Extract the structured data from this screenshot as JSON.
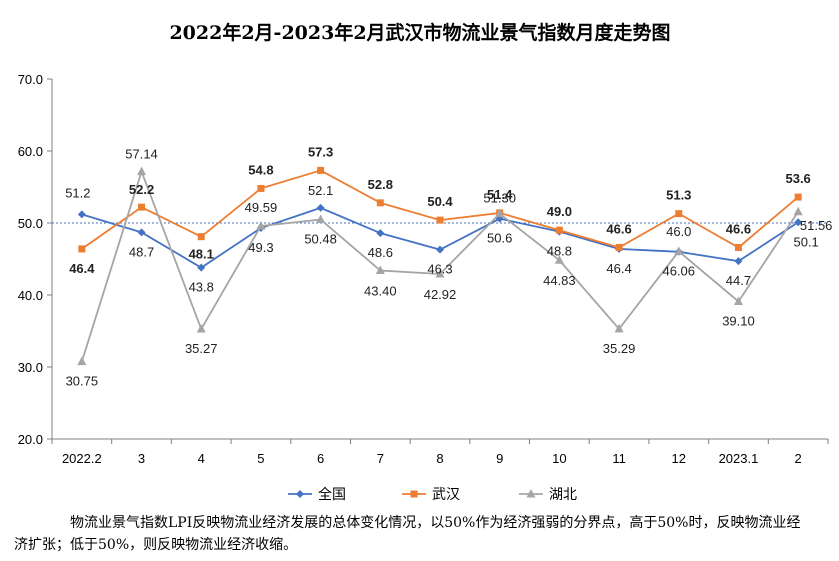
{
  "chart_data": {
    "type": "line",
    "title": "2022年2月-2023年2月武汉市物流业景气指数月度走势图",
    "categories": [
      "2022.2",
      "3",
      "4",
      "5",
      "6",
      "7",
      "8",
      "9",
      "10",
      "11",
      "12",
      "2023.1",
      "2"
    ],
    "ylim": [
      20.0,
      70.0
    ],
    "yticks": [
      "20.0",
      "30.0",
      "40.0",
      "50.0",
      "60.0",
      "70.0"
    ],
    "reference_line": 50,
    "grid": false,
    "legend_position": "bottom",
    "series": [
      {
        "name": "全国",
        "color": "#4472C4",
        "marker": "diamond",
        "values": [
          51.2,
          48.7,
          43.8,
          49.3,
          52.1,
          48.6,
          46.3,
          50.6,
          48.8,
          46.4,
          46.0,
          44.7,
          50.1
        ],
        "labels": [
          "51.2",
          "48.7",
          "43.8",
          "49.3",
          "52.1",
          "48.6",
          "46.3",
          "50.6",
          "48.8",
          "46.4",
          "46.0",
          "44.7",
          "50.1"
        ]
      },
      {
        "name": "武汉",
        "color": "#ED7D31",
        "marker": "square",
        "values": [
          46.4,
          52.2,
          48.1,
          54.8,
          57.3,
          52.8,
          50.4,
          51.4,
          49.0,
          46.6,
          51.3,
          46.6,
          53.6
        ],
        "labels": [
          "46.4",
          "52.2",
          "48.1",
          "54.8",
          "57.3",
          "52.8",
          "50.4",
          "51.4",
          "49.0",
          "46.6",
          "51.3",
          "46.6",
          "53.6"
        ]
      },
      {
        "name": "湖北",
        "color": "#A5A5A5",
        "marker": "triangle",
        "values": [
          30.75,
          57.14,
          35.27,
          49.59,
          50.48,
          43.4,
          42.92,
          51.3,
          44.83,
          35.29,
          46.06,
          39.1,
          51.56
        ],
        "labels": [
          "30.75",
          "57.14",
          "35.27",
          "49.59",
          "50.48",
          "43.40",
          "42.92",
          "51.30",
          "44.83",
          "35.29",
          "46.06",
          "39.10",
          "51.56"
        ]
      }
    ]
  },
  "note": "物流业景气指数LPI反映物流业经济发展的总体变化情况，以50%作为经济强弱的分界点，高于50%时，反映物流业经济扩张；低于50%，则反映物流业经济收缩。"
}
